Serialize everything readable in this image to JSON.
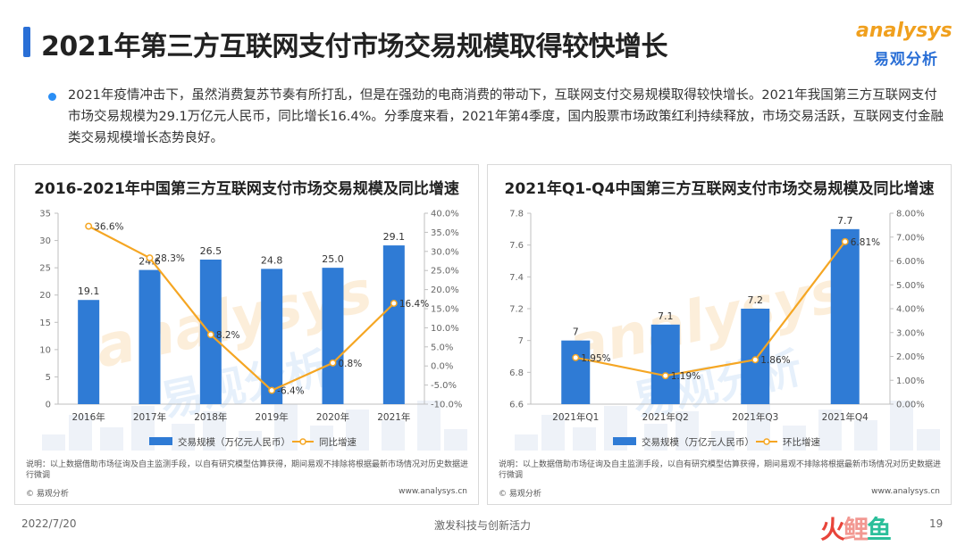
{
  "header": {
    "title": "2021年第三方互联网支付市场交易规模取得较快增长",
    "logo_en": "analysys",
    "logo_cn": "易观分析"
  },
  "summary": "2021年疫情冲击下，虽然消费复苏节奏有所打乱，但是在强劲的电商消费的带动下，互联网支付交易规模取得较快增长。2021年我国第三方互联网支付市场交易规模为29.1万亿元人民币，同比增长16.4%。分季度来看，2021年第4季度，国内股票市场政策红利持续释放，市场交易活跃，互联网支付金融类交易规模增长态势良好。",
  "colors": {
    "bar": "#2f7bd5",
    "line": "#f5a623",
    "accent": "#2a6fd6"
  },
  "panels": [
    {
      "title": "2016-2021年中国第三方互联网支付市场交易规模及同比增速",
      "note": "说明：以上数据借助市场征询及自主监测手段，以自有研究模型估算获得，期间易观不排除将根据最新市场情况对历史数据进行微调",
      "copyright": "© 易观分析",
      "site": "www.analysys.cn"
    },
    {
      "title": "2021年Q1-Q4中国第三方互联网支付市场交易规模及同比增速",
      "note": "说明：以上数据借助市场征询及自主监测手段，以自有研究模型估算获得，期间易观不排除将根据最新市场情况对历史数据进行微调",
      "copyright": "© 易观分析",
      "site": "www.analysys.cn"
    }
  ],
  "chart_data": [
    {
      "type": "bar",
      "title": "2016-2021年中国第三方互联网支付市场交易规模及同比增速",
      "categories": [
        "2016年",
        "2017年",
        "2018年",
        "2019年",
        "2020年",
        "2021年"
      ],
      "series": [
        {
          "name": "交易规模（万亿元人民币）",
          "type": "bar",
          "axis": "left",
          "values": [
            19.1,
            24.6,
            26.5,
            24.8,
            25.0,
            29.1
          ],
          "labels": [
            "19.1",
            "24.6",
            "26.5",
            "24.8",
            "25.0",
            "29.1"
          ]
        },
        {
          "name": "同比增速",
          "type": "line",
          "axis": "right",
          "values": [
            36.6,
            28.3,
            8.2,
            -6.4,
            0.8,
            16.4
          ],
          "labels": [
            "36.6%",
            "28.3%",
            "8.2%",
            "-6.4%",
            "0.8%",
            "16.4%"
          ]
        }
      ],
      "y_left": {
        "min": 0,
        "max": 35,
        "step": 5,
        "ticks": [
          "0",
          "5",
          "10",
          "15",
          "20",
          "25",
          "30",
          "35"
        ]
      },
      "y_right": {
        "min": -10,
        "max": 40,
        "step": 5,
        "ticks": [
          "-10.0%",
          "-5.0%",
          "0.0%",
          "5.0%",
          "10.0%",
          "15.0%",
          "20.0%",
          "25.0%",
          "30.0%",
          "35.0%",
          "40.0%"
        ]
      },
      "legend": "bottom"
    },
    {
      "type": "bar",
      "title": "2021年Q1-Q4中国第三方互联网支付市场交易规模及同比增速",
      "categories": [
        "2021年Q1",
        "2021年Q2",
        "2021年Q3",
        "2021年Q4"
      ],
      "series": [
        {
          "name": "交易规模（万亿元人民币）",
          "type": "bar",
          "axis": "left",
          "values": [
            7.0,
            7.1,
            7.2,
            7.7
          ],
          "labels": [
            "7",
            "7.1",
            "7.2",
            "7.7"
          ]
        },
        {
          "name": "环比增速",
          "type": "line",
          "axis": "right",
          "values": [
            1.95,
            1.19,
            1.86,
            6.81
          ],
          "labels": [
            "1.95%",
            "1.19%",
            "1.86%",
            "6.81%"
          ]
        }
      ],
      "y_left": {
        "min": 6.6,
        "max": 7.8,
        "step": 0.2,
        "ticks": [
          "6.6",
          "6.8",
          "7",
          "7.2",
          "7.4",
          "7.6",
          "7.8"
        ]
      },
      "y_right": {
        "min": 0,
        "max": 8,
        "step": 1,
        "ticks": [
          "0.00%",
          "1.00%",
          "2.00%",
          "3.00%",
          "4.00%",
          "5.00%",
          "6.00%",
          "7.00%",
          "8.00%"
        ]
      },
      "legend": "bottom"
    }
  ],
  "footer": {
    "date": "2022/7/20",
    "slogan": "激发科技与创新活力",
    "brand": [
      "火",
      "鲤",
      "鱼"
    ],
    "page": "19"
  }
}
